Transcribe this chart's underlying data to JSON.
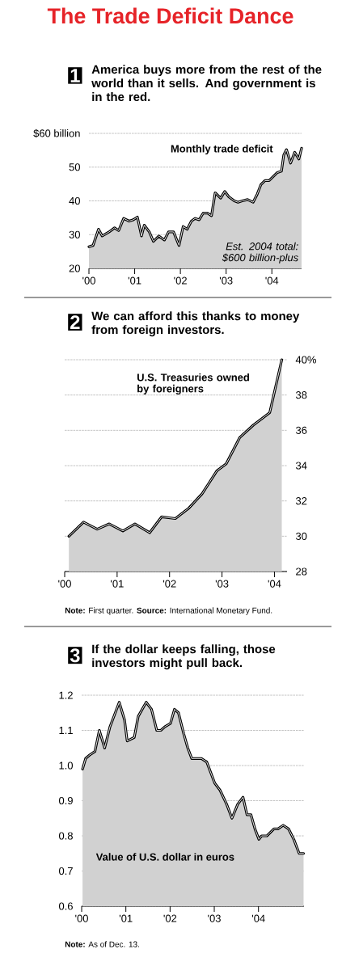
{
  "chart_data": [
    {
      "type": "area",
      "title": "The Trade Deficit Dance",
      "subtitle": "America buys more from the rest of the world than it sells. And government is in the red.",
      "annotations": [
        "1",
        "Est. 2004 total: $600 billion-plus"
      ],
      "xlim": [
        2000,
        2004.65
      ],
      "xticks": [
        {
          "value": 2000,
          "label": "'00"
        },
        {
          "value": 2001,
          "label": "'01"
        },
        {
          "value": 2002,
          "label": "'02"
        },
        {
          "value": 2003,
          "label": "'03"
        },
        {
          "value": 2004,
          "label": "'04"
        }
      ],
      "ylim": [
        20,
        60
      ],
      "yticks": [
        20,
        30,
        40,
        50,
        {
          "value": 60,
          "label": "$60 billion"
        }
      ],
      "grid": "y",
      "series": [
        {
          "name": "Monthly trade deficit",
          "color": "#000000",
          "x": [
            2000.0,
            2000.09,
            2000.21,
            2000.29,
            2000.44,
            2000.56,
            2000.65,
            2000.76,
            2000.88,
            2000.97,
            2001.06,
            2001.15,
            2001.21,
            2001.32,
            2001.41,
            2001.53,
            2001.65,
            2001.74,
            2001.85,
            2001.97,
            2002.06,
            2002.15,
            2002.24,
            2002.32,
            2002.41,
            2002.5,
            2002.59,
            2002.68,
            2002.76,
            2002.88,
            2002.97,
            2003.06,
            2003.18,
            2003.26,
            2003.35,
            2003.47,
            2003.59,
            2003.68,
            2003.76,
            2003.85,
            2003.94,
            2004.03,
            2004.12,
            2004.21,
            2004.26,
            2004.32,
            2004.41,
            2004.5,
            2004.59,
            2004.65
          ],
          "values": [
            26.4,
            26.8,
            31.6,
            29.6,
            30.8,
            32,
            31.2,
            34.8,
            34,
            34.4,
            35.2,
            29.6,
            32.8,
            30.8,
            28,
            29.6,
            28.4,
            30.8,
            30.8,
            26.8,
            32.4,
            31.6,
            34,
            34.8,
            34.4,
            36.4,
            36.4,
            35.6,
            42.4,
            40.8,
            42.8,
            41.2,
            40,
            39.6,
            40,
            40.4,
            39.6,
            42,
            44.8,
            46,
            46,
            47.2,
            48.4,
            48.8,
            53.6,
            55.2,
            51.2,
            54.4,
            52.4,
            55.6
          ]
        }
      ]
    },
    {
      "type": "area",
      "title": "We can afford this thanks to money from foreign investors.",
      "annotations": [
        "2",
        "**Note:** First quarter. **Source:** International Monetary Fund."
      ],
      "xlim": [
        2000,
        2004.24
      ],
      "xticks": [
        {
          "value": 2000,
          "label": "'00"
        },
        {
          "value": 2001,
          "label": "'01"
        },
        {
          "value": 2002,
          "label": "'02"
        },
        {
          "value": 2003,
          "label": "'03"
        },
        {
          "value": 2004,
          "label": "'04"
        }
      ],
      "y2lim": [
        28,
        40
      ],
      "y2ticks": [
        28,
        30,
        32,
        34,
        36,
        38,
        {
          "value": 40,
          "label": "40%"
        }
      ],
      "grid": "y",
      "series": [
        {
          "name": "U.S. Treasuries owned by foreigners",
          "color": "#000000",
          "axis": "y2",
          "x": [
            2000.08,
            2000.36,
            2000.62,
            2000.85,
            2001.11,
            2001.34,
            2001.62,
            2001.85,
            2002.11,
            2002.37,
            2002.62,
            2002.9,
            2003.08,
            2003.34,
            2003.6,
            2003.91,
            2004.14
          ],
          "values": [
            30.0,
            30.8,
            30.4,
            30.7,
            30.3,
            30.7,
            30.2,
            31.1,
            31.0,
            31.6,
            32.4,
            33.7,
            34.1,
            35.6,
            36.3,
            37.0,
            40.0
          ]
        }
      ]
    },
    {
      "type": "area",
      "title": "If the dollar keeps falling, those investors might pull back.",
      "annotations": [
        "3",
        "**Note:** As of Dec. 13."
      ],
      "xlim": [
        2000,
        2005.03
      ],
      "xticks": [
        {
          "value": 2000,
          "label": "'00"
        },
        {
          "value": 2001,
          "label": "'01"
        },
        {
          "value": 2002,
          "label": "'02"
        },
        {
          "value": 2003,
          "label": "'03"
        },
        {
          "value": 2004,
          "label": "'04"
        }
      ],
      "ylim": [
        0.6,
        1.2
      ],
      "yticks": [
        0.6,
        0.7,
        0.8,
        0.9,
        {
          "value": 1,
          "label": "1.0"
        },
        1.1,
        1.2
      ],
      "grid": "y",
      "series": [
        {
          "name": "Value of U.S. dollar in euros",
          "color": "#000000",
          "x": [
            2000.02,
            2000.09,
            2000.18,
            2000.3,
            2000.4,
            2000.52,
            2000.64,
            2000.7,
            2000.85,
            2000.97,
            2001.03,
            2001.19,
            2001.28,
            2001.46,
            2001.58,
            2001.7,
            2001.79,
            2001.88,
            2002.01,
            2002.1,
            2002.19,
            2002.31,
            2002.4,
            2002.49,
            2002.55,
            2002.71,
            2002.83,
            2003.01,
            2003.13,
            2003.28,
            2003.4,
            2003.53,
            2003.65,
            2003.74,
            2003.83,
            2003.92,
            2004.01,
            2004.07,
            2004.19,
            2004.35,
            2004.44,
            2004.56,
            2004.68,
            2004.8,
            2004.92,
            2005.02
          ],
          "values": [
            0.99,
            1.02,
            1.03,
            1.04,
            1.1,
            1.05,
            1.11,
            1.13,
            1.18,
            1.13,
            1.07,
            1.08,
            1.14,
            1.18,
            1.16,
            1.1,
            1.1,
            1.11,
            1.12,
            1.16,
            1.15,
            1.09,
            1.05,
            1.02,
            1.02,
            1.02,
            1.01,
            0.95,
            0.93,
            0.89,
            0.85,
            0.89,
            0.91,
            0.86,
            0.86,
            0.82,
            0.79,
            0.8,
            0.8,
            0.82,
            0.82,
            0.83,
            0.82,
            0.79,
            0.75,
            0.75
          ]
        }
      ]
    }
  ]
}
